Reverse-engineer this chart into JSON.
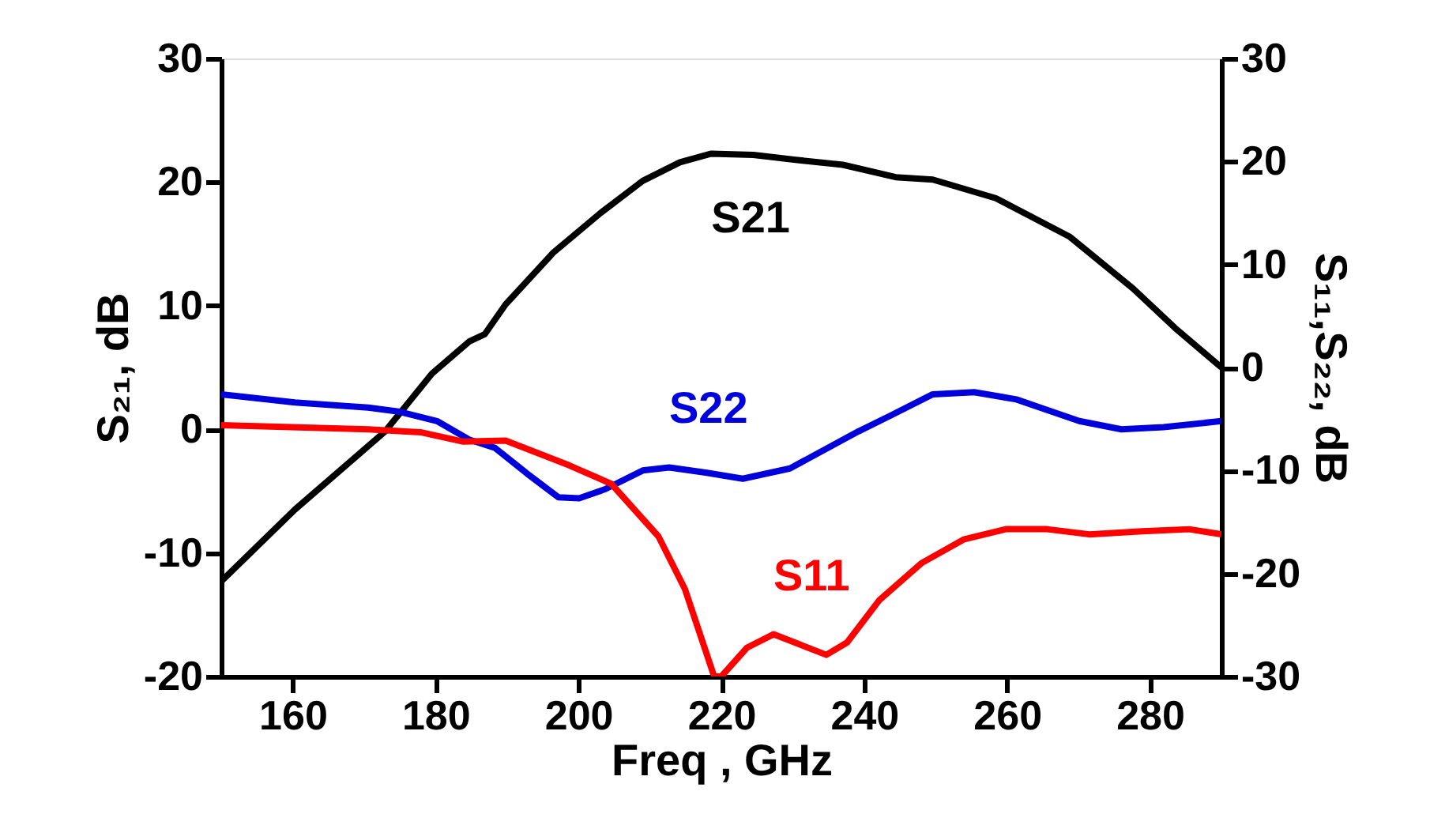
{
  "chart_data": {
    "type": "line",
    "xlabel": "Freq , GHz",
    "ylabel": "S₂₁, dB",
    "y2label": "S₁₁,S₂₂, dB",
    "xlim": [
      150,
      290
    ],
    "xticks": [
      160,
      180,
      200,
      220,
      240,
      260,
      280
    ],
    "ylim": [
      -20,
      30
    ],
    "yticks": [
      -20,
      -10,
      0,
      10,
      20,
      30
    ],
    "y2lim": [
      -30,
      30
    ],
    "y2ticks": [
      -30,
      -20,
      -10,
      0,
      10,
      20,
      30
    ],
    "grid": false,
    "marker": "none",
    "line_style": "solid",
    "series": [
      {
        "color": "#000000",
        "x": [
          150,
          160.3,
          172.9,
          179.5,
          184.7,
          186.9,
          189.8,
          196.5,
          203.1,
          209,
          214.2,
          218.6,
          224.5,
          230.4,
          237,
          244.4,
          249.6,
          258.4,
          268.7,
          277.6,
          283.5,
          290
        ],
        "values": [
          -12.3,
          -6.5,
          -0.2,
          4.5,
          7.1,
          7.7,
          10.1,
          14.3,
          17.5,
          20.1,
          21.6,
          22.3,
          22.2,
          21.8,
          21.4,
          20.4,
          20.2,
          18.7,
          15.6,
          11.4,
          8.2,
          5.0
        ]
      },
      {
        "axis": "y2",
        "color": "#0000dd",
        "x": [
          150,
          160.3,
          170.6,
          175,
          180.2,
          184.7,
          188.3,
          192.8,
          197.2,
          200.1,
          203.8,
          209,
          212.7,
          217.8,
          223,
          229.6,
          239.2,
          243.6,
          249.6,
          255.4,
          261.3,
          270.1,
          276,
          281.9,
          290
        ],
        "values": [
          -2.6,
          -3.4,
          -3.9,
          -4.3,
          -5.2,
          -7.0,
          -7.8,
          -10.3,
          -12.6,
          -12.7,
          -11.8,
          -10.0,
          -9.7,
          -10.2,
          -10.8,
          -9.8,
          -6.2,
          -4.7,
          -2.6,
          -2.4,
          -3.1,
          -5.2,
          -6.0,
          -5.8,
          -5.2
        ]
      },
      {
        "axis": "y2",
        "color": "#ff0000",
        "x": [
          150,
          170.6,
          178,
          183.9,
          189.8,
          198.7,
          204.6,
          211.2,
          214.9,
          219,
          220,
          223.6,
          227.3,
          231,
          234.7,
          237.6,
          242.1,
          248,
          253.9,
          259.8,
          265.6,
          271.5,
          278.9,
          285.5,
          290
        ],
        "values": [
          -5.6,
          -6.0,
          -6.3,
          -7.2,
          -7.1,
          -9.5,
          -11.3,
          -16.4,
          -21.5,
          -30,
          -30,
          -27.2,
          -25.9,
          -26.9,
          -27.9,
          -26.7,
          -22.6,
          -19.0,
          -16.7,
          -15.7,
          -15.7,
          -16.2,
          -15.9,
          -15.7,
          -16.2
        ]
      }
    ],
    "annotations": [
      "S21",
      "S22",
      "S11"
    ]
  }
}
